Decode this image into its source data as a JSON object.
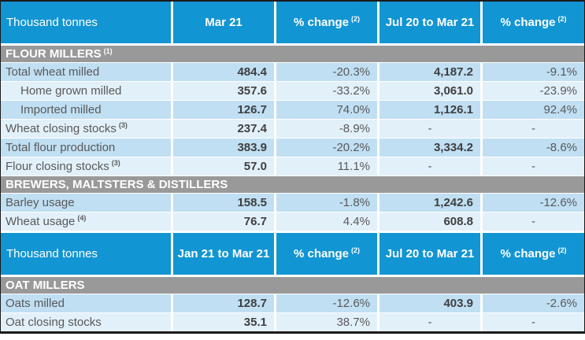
{
  "colors": {
    "header_blue": "#1295d3",
    "section_gray": "#999999",
    "row_dark": "#c0dff3",
    "row_light": "#e2f0fa"
  },
  "h1": {
    "label": "Thousand tonnes",
    "c1": "Mar 21",
    "c2": "% change",
    "c2s": "(2)",
    "c3": "Jul 20 to Mar 21",
    "c4": "% change",
    "c4s": "(2)"
  },
  "h2": {
    "label": "Thousand tonnes",
    "c1": "Jan 21 to Mar 21",
    "c2": "% change",
    "c2s": "(2)",
    "c3": "Jul 20 to Mar 21",
    "c4": "% change",
    "c4s": "(2)"
  },
  "s1": {
    "title": "FLOUR MILLERS",
    "sup": "(1)"
  },
  "s2": {
    "title": "BREWERS, MALTSTERS & DISTILLERS"
  },
  "s3": {
    "title": "OAT MILLERS"
  },
  "rows": [
    {
      "label": "Total wheat milled",
      "v1": "484.4",
      "p1": "-20.3%",
      "v2": "4,187.2",
      "p2": "-9.1%"
    },
    {
      "label": "Home grown milled",
      "v1": "357.6",
      "p1": "-33.2%",
      "v2": "3,061.0",
      "p2": "-23.9%"
    },
    {
      "label": "Imported milled",
      "v1": "126.7",
      "p1": "74.0%",
      "v2": "1,126.1",
      "p2": "92.4%"
    },
    {
      "label": "Wheat closing stocks",
      "sup": "(3)",
      "v1": "237.4",
      "p1": "-8.9%",
      "v2": "-",
      "p2": "-"
    },
    {
      "label": "Total flour production",
      "v1": "383.9",
      "p1": "-20.2%",
      "v2": "3,334.2",
      "p2": "-8.6%"
    },
    {
      "label": "Flour closing stocks",
      "sup": "(3)",
      "v1": "57.0",
      "p1": "11.1%",
      "v2": "-",
      "p2": "-"
    },
    {
      "label": "Barley usage",
      "v1": "158.5",
      "p1": "-1.8%",
      "v2": "1,242.6",
      "p2": "-12.6%"
    },
    {
      "label": "Wheat usage",
      "sup": "(4)",
      "v1": "76.7",
      "p1": "4.4%",
      "v2": "608.8",
      "p2": "-"
    },
    {
      "label": "Oats milled",
      "v1": "128.7",
      "p1": "-12.6%",
      "v2": "403.9",
      "p2": "-2.6%"
    },
    {
      "label": "Oat closing stocks",
      "v1": "35.1",
      "p1": "38.7%",
      "v2": "-",
      "p2": "-"
    }
  ]
}
